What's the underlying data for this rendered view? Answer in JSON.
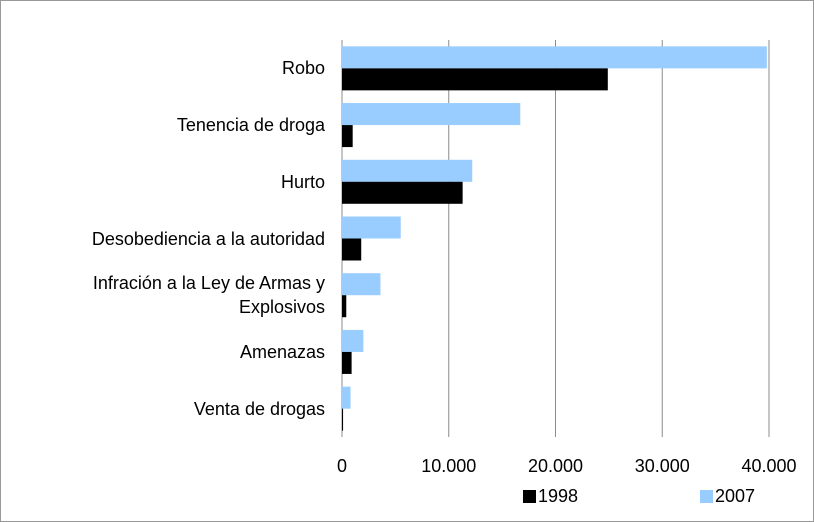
{
  "chart_data": {
    "type": "bar",
    "orientation": "horizontal",
    "categories": [
      "Robo",
      "Tenencia de droga",
      "Hurto",
      "Desobediencia a la autoridad",
      "Infración a la Ley de Armas y\nExplosivos",
      "Amenazas",
      "Venta de drogas"
    ],
    "series": [
      {
        "name": "1998",
        "color": "#000000",
        "values": [
          24900,
          1000,
          11300,
          1800,
          400,
          900,
          100
        ]
      },
      {
        "name": "2007",
        "color": "#99ccff",
        "values": [
          39800,
          16700,
          12200,
          5500,
          3600,
          2000,
          800
        ]
      }
    ],
    "xlim": [
      0,
      40000
    ],
    "xticks": [
      0,
      {
        "value": 10000,
        "label": "10.000"
      },
      {
        "value": 20000,
        "label": "20.000"
      },
      {
        "value": 30000,
        "label": "30.000"
      },
      {
        "value": 40000,
        "label": "40.000"
      }
    ],
    "grid": true,
    "legend": "bottom"
  }
}
